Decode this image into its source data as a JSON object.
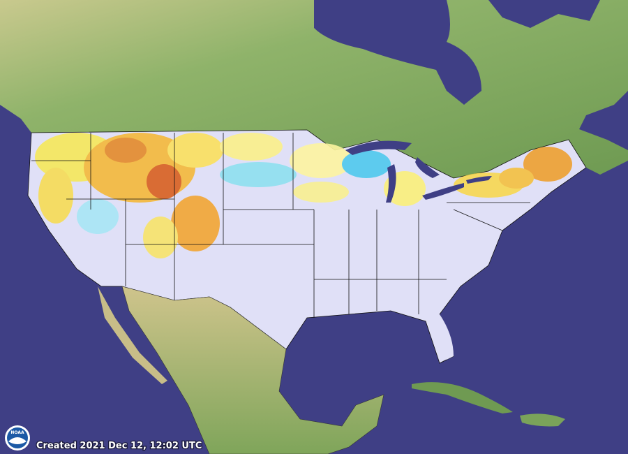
{
  "logo": "NOAA",
  "caption": "Created 2021 Dec 12, 12:02 UTC"
}
